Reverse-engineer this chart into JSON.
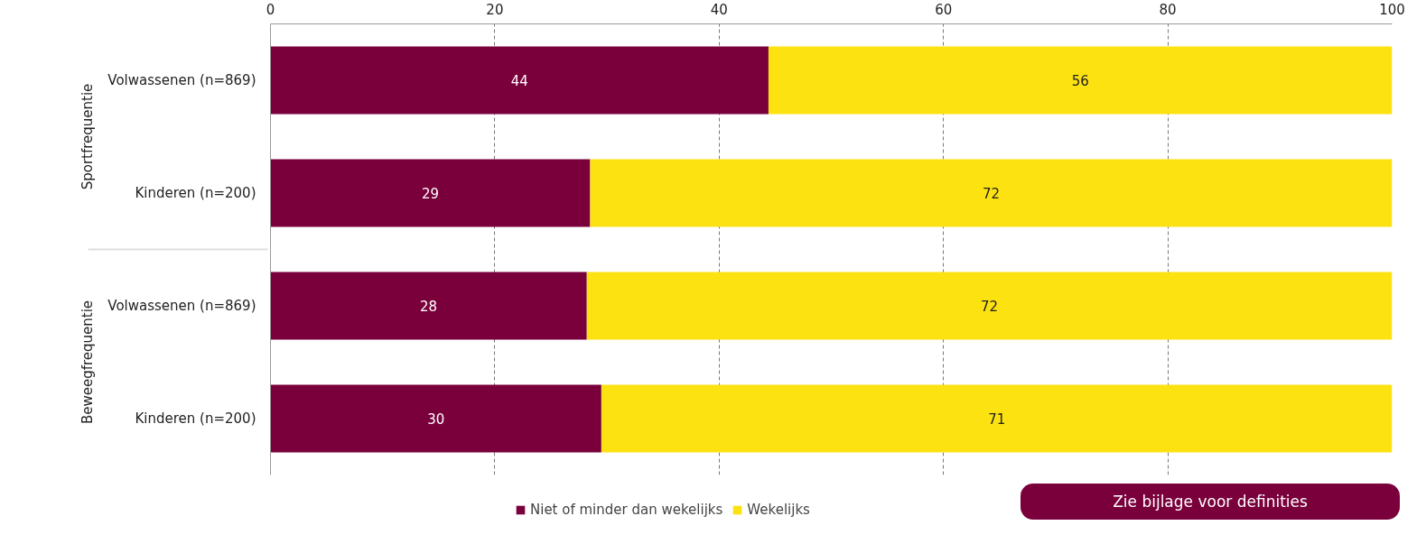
{
  "chart_data": {
    "type": "bar",
    "orientation": "horizontal",
    "stacked": true,
    "categories": [
      "Volwassenen (n=869)",
      "Kinderen (n=200)",
      "Volwassenen (n=869)",
      "Kinderen (n=200)"
    ],
    "series": [
      {
        "name": "Niet of minder dan wekelijks",
        "color": "#7a003c",
        "values": [
          44.4,
          28.5,
          28.2,
          29.5
        ],
        "value_labels": [
          "44",
          "29",
          "28",
          "30"
        ]
      },
      {
        "name": "Wekelijks",
        "color": "#fde212",
        "values": [
          55.6,
          71.5,
          71.8,
          70.5
        ],
        "value_labels": [
          "56",
          "72",
          "72",
          "71"
        ]
      }
    ],
    "xlim": [
      0,
      100
    ],
    "xticks": [
      0,
      20,
      40,
      60,
      80,
      100
    ],
    "grid": "x",
    "legend": "bottom",
    "annotations": [
      "Sportfrequentie",
      "Beweegfrequentie",
      "Zie bijlage voor definities"
    ]
  }
}
